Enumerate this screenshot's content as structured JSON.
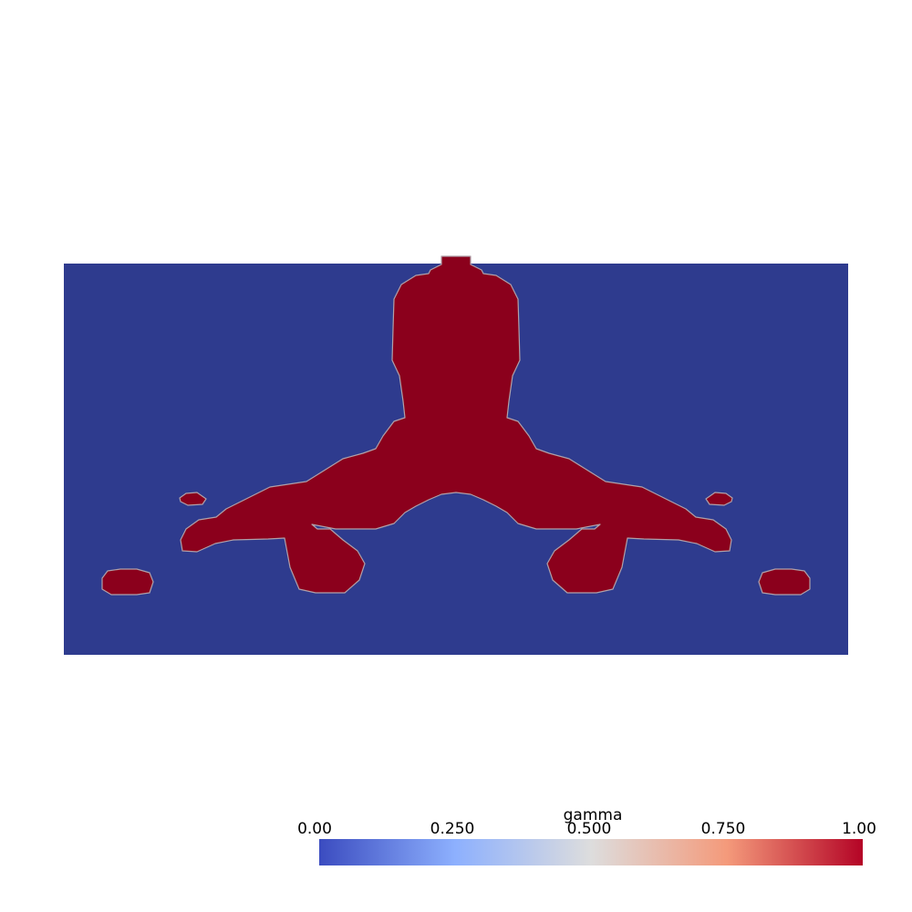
{
  "scalar_bar": {
    "title": "gamma",
    "tick_labels": [
      "0.00",
      "0.250",
      "0.500",
      "0.750",
      "1.00"
    ],
    "range": [
      0.0,
      1.0
    ],
    "colormap": [
      "#3b4cc0",
      "#8db0fe",
      "#dddddd",
      "#f49a7b",
      "#b40426"
    ]
  },
  "field": {
    "background_color": "#2e3b8e",
    "material_color": "#8b001c",
    "edge_color": "#b0a0a8",
    "symmetric": true
  }
}
